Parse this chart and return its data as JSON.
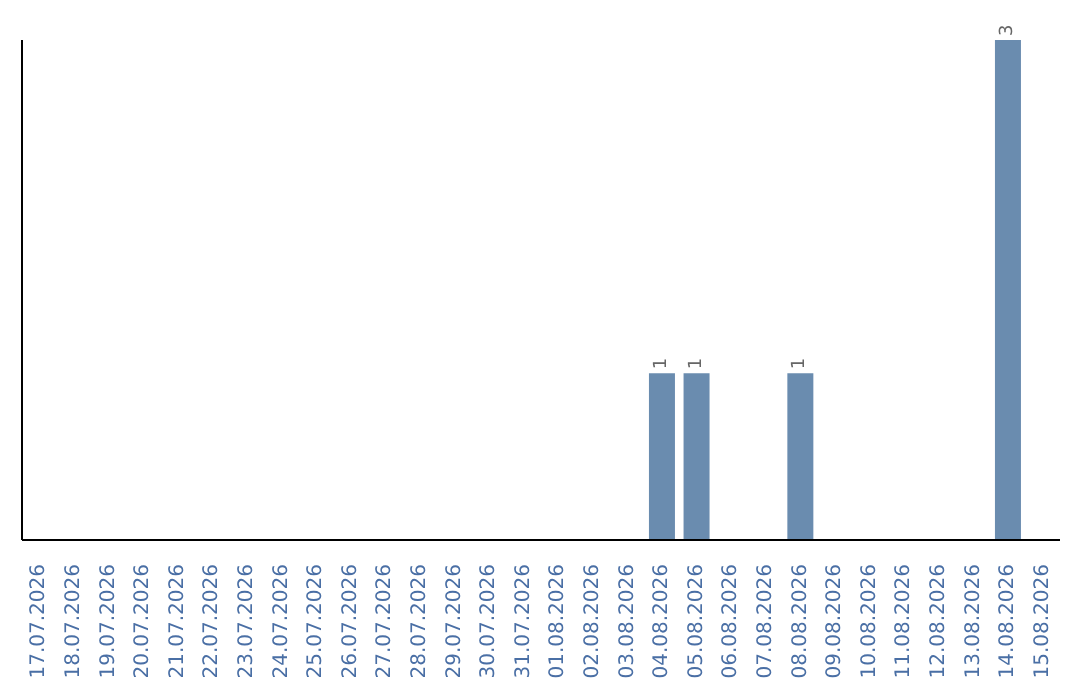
{
  "chart_data": {
    "type": "bar",
    "categories": [
      "17.07.2026",
      "18.07.2026",
      "19.07.2026",
      "20.07.2026",
      "21.07.2026",
      "22.07.2026",
      "23.07.2026",
      "24.07.2026",
      "25.07.2026",
      "26.07.2026",
      "27.07.2026",
      "28.07.2026",
      "29.07.2026",
      "30.07.2026",
      "31.07.2026",
      "01.08.2026",
      "02.08.2026",
      "03.08.2026",
      "04.08.2026",
      "05.08.2026",
      "06.08.2026",
      "07.08.2026",
      "08.08.2026",
      "09.08.2026",
      "10.08.2026",
      "11.08.2026",
      "12.08.2026",
      "13.08.2026",
      "14.08.2026",
      "15.08.2026"
    ],
    "values": [
      null,
      null,
      null,
      null,
      null,
      null,
      null,
      null,
      null,
      null,
      null,
      null,
      null,
      null,
      null,
      null,
      null,
      null,
      1,
      1,
      null,
      null,
      1,
      null,
      null,
      null,
      null,
      null,
      3,
      null
    ],
    "color": "#6a8caf",
    "data_labels": true
  }
}
